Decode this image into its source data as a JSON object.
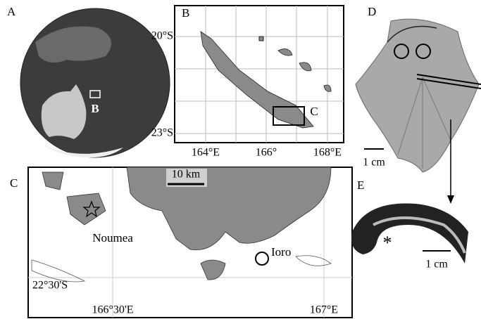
{
  "panels": {
    "A": {
      "label": "A",
      "inset_label": "B"
    },
    "B": {
      "label": "B",
      "inset_label": "C",
      "lat_labels": [
        "20°S",
        "23°S"
      ],
      "lon_labels": [
        "164°E",
        "166°",
        "168°E"
      ]
    },
    "C": {
      "label": "C",
      "scale": "10 km",
      "places": [
        "Noumea",
        "Ioro"
      ],
      "lat_label": "22°30'S",
      "lon_labels": [
        "166°30'E",
        "167°E"
      ]
    },
    "D": {
      "label": "D",
      "scale": "1 cm"
    },
    "E": {
      "label": "E",
      "scale": "1 cm"
    }
  }
}
